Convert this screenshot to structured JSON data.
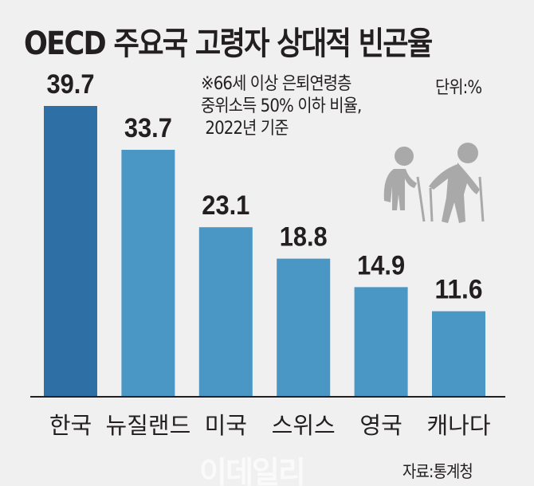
{
  "chart_data": {
    "type": "bar",
    "title": "OECD 주요국 고령자 상대적 빈곤율",
    "note": "※66세 이상 은퇴연령층\n중위소득 50% 이하 비율,\n 2022년 기준",
    "unit": "단위:%",
    "source": "자료:통계청",
    "watermark": "이데일리",
    "categories": [
      "한국",
      "뉴질랜드",
      "미국",
      "스위스",
      "영국",
      "캐나다"
    ],
    "values": [
      39.7,
      33.7,
      23.1,
      18.8,
      14.9,
      11.6
    ],
    "value_labels": [
      "39.7",
      "33.7",
      "23.1",
      "18.8",
      "14.9",
      "11.6"
    ],
    "ylim": [
      0,
      40
    ],
    "highlight_color": "#2e6fa6",
    "bar_color": "#4a97c6",
    "icon": "elderly-couple-icon"
  }
}
